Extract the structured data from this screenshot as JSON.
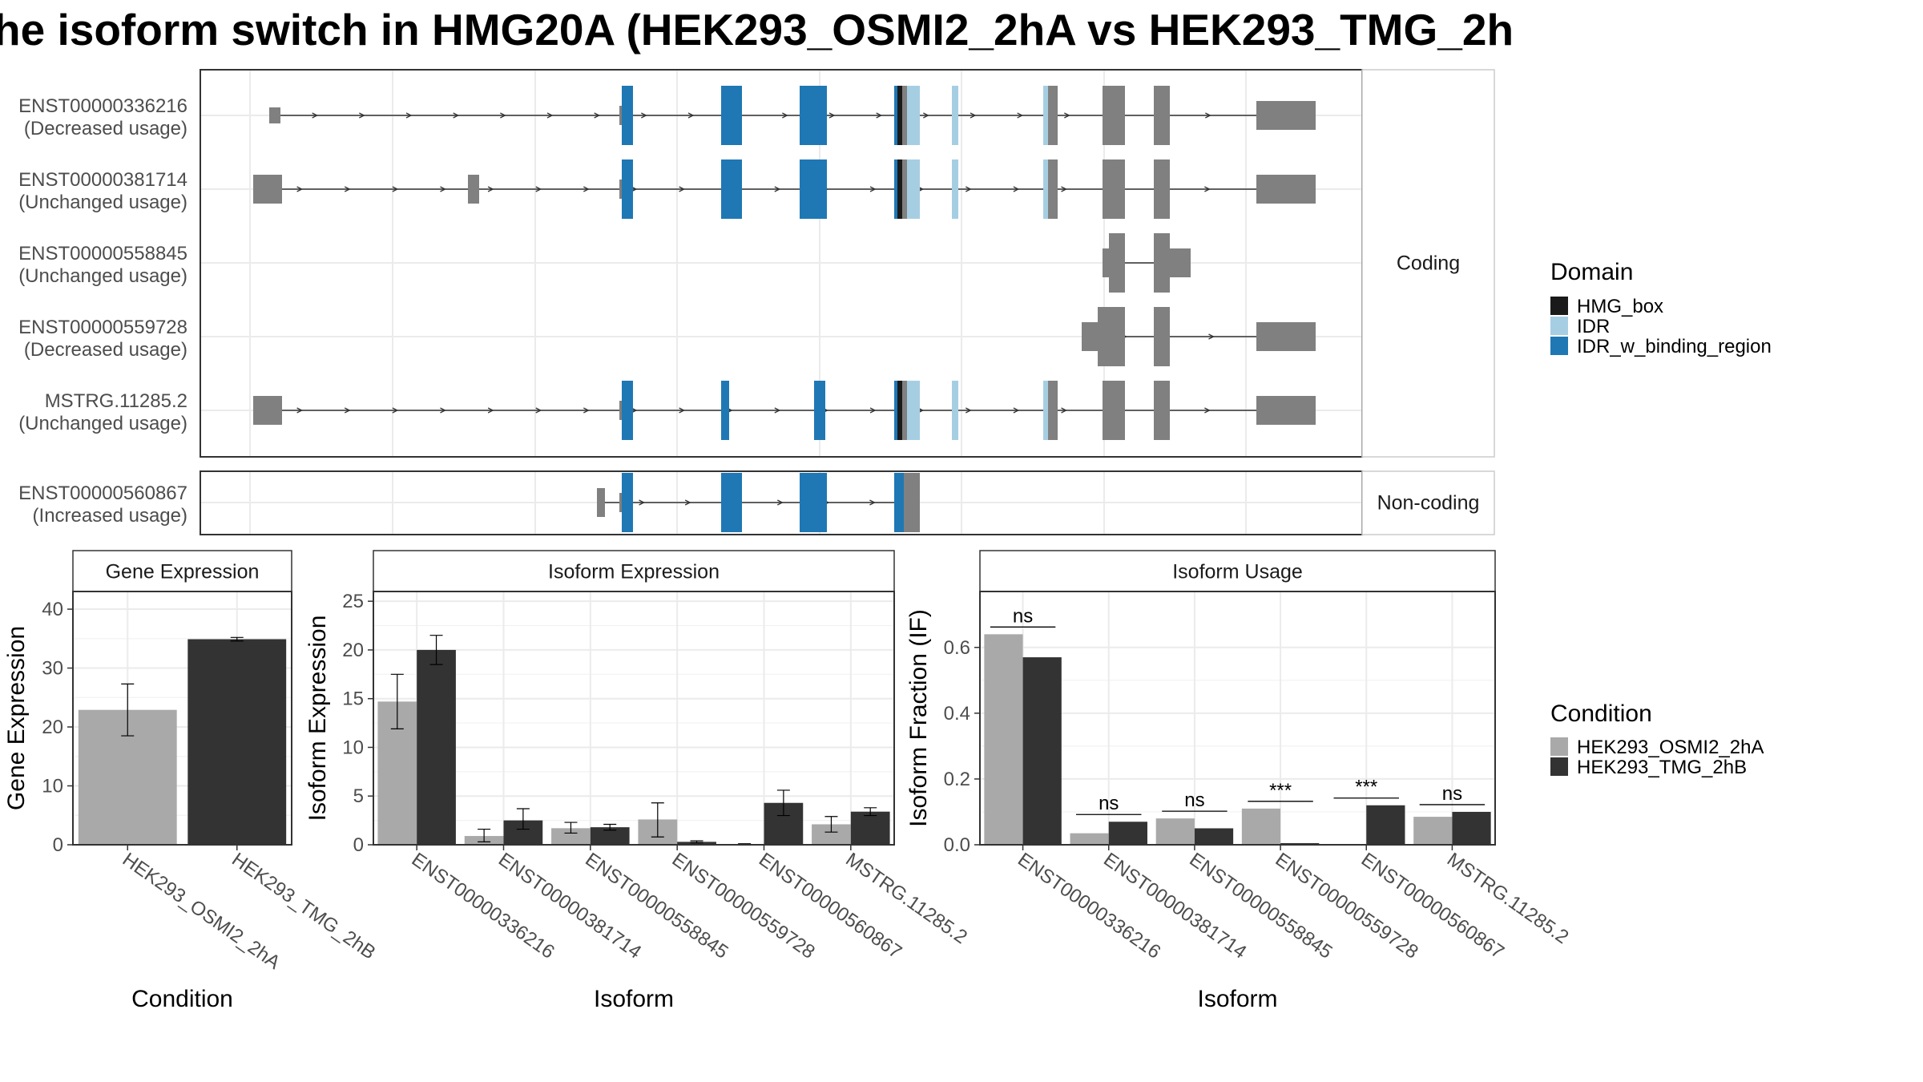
{
  "title": "he isoform switch in HMG20A (HEK293_OSMI2_2hA vs HEK293_TMG_2h",
  "colors": {
    "HMG_box": "#1a1a1a",
    "IDR": "#a6cee3",
    "IDR_w_binding_region": "#1f78b4",
    "exon": "#808080",
    "cond_a": "#a9a9a9",
    "cond_b": "#333333"
  },
  "structure": {
    "facets": [
      "Coding",
      "Non-coding"
    ],
    "transcripts": [
      {
        "id": "ENST00000336216",
        "usage": "(Decreased usage)",
        "facet": "Coding"
      },
      {
        "id": "ENST00000381714",
        "usage": "(Unchanged usage)",
        "facet": "Coding"
      },
      {
        "id": "ENST00000558845",
        "usage": "(Unchanged usage)",
        "facet": "Coding"
      },
      {
        "id": "ENST00000559728",
        "usage": "(Decreased usage)",
        "facet": "Coding"
      },
      {
        "id": "MSTRG.11285.2",
        "usage": "(Unchanged usage)",
        "facet": "Coding"
      },
      {
        "id": "ENST00000560867",
        "usage": "(Increased usage)",
        "facet": "Non-coding"
      }
    ]
  },
  "legend_domain": {
    "title": "Domain",
    "items": [
      "HMG_box",
      "IDR",
      "IDR_w_binding_region"
    ]
  },
  "legend_condition": {
    "title": "Condition",
    "items": [
      "HEK293_OSMI2_2hA",
      "HEK293_TMG_2hB"
    ]
  },
  "chart_data": [
    {
      "type": "bar",
      "title": "Gene Expression",
      "xlabel": "Condition",
      "ylabel": "Gene Expression",
      "categories": [
        "HEK293_OSMI2_2hA",
        "HEK293_TMG_2hB"
      ],
      "values": [
        22.9,
        34.9
      ],
      "errors": [
        [
          18.5,
          27.3
        ],
        [
          34.6,
          35.2
        ]
      ],
      "ylim": [
        0,
        43
      ],
      "yticks": [
        0,
        10,
        20,
        30,
        40
      ]
    },
    {
      "type": "bar",
      "title": "Isoform Expression",
      "xlabel": "Isoform",
      "ylabel": "Isoform Expression",
      "categories": [
        "ENST00000336216",
        "ENST00000381714",
        "ENST00000558845",
        "ENST00000559728",
        "ENST00000560867",
        "MSTRG.11285.2"
      ],
      "series": [
        {
          "name": "HEK293_OSMI2_2hA",
          "values": [
            14.7,
            0.9,
            1.7,
            2.6,
            0.05,
            2.1
          ],
          "errors": [
            [
              11.9,
              17.5
            ],
            [
              0.3,
              1.6
            ],
            [
              1.2,
              2.3
            ],
            [
              0.8,
              4.3
            ],
            [
              0.0,
              0.1
            ],
            [
              1.3,
              2.9
            ]
          ]
        },
        {
          "name": "HEK293_TMG_2hB",
          "values": [
            20.0,
            2.5,
            1.8,
            0.3,
            4.3,
            3.4
          ],
          "errors": [
            [
              18.5,
              21.5
            ],
            [
              1.6,
              3.7
            ],
            [
              1.5,
              2.1
            ],
            [
              0.2,
              0.4
            ],
            [
              3.0,
              5.6
            ],
            [
              3.0,
              3.8
            ]
          ]
        }
      ],
      "ylim": [
        0,
        26
      ],
      "yticks": [
        0,
        5,
        10,
        15,
        20,
        25
      ]
    },
    {
      "type": "bar",
      "title": "Isoform Usage",
      "xlabel": "Isoform",
      "ylabel": "Isoform Fraction (IF)",
      "categories": [
        "ENST00000336216",
        "ENST00000381714",
        "ENST00000558845",
        "ENST00000559728",
        "ENST00000560867",
        "MSTRG.11285.2"
      ],
      "series": [
        {
          "name": "HEK293_OSMI2_2hA",
          "values": [
            0.64,
            0.035,
            0.08,
            0.11,
            0.0,
            0.085
          ]
        },
        {
          "name": "HEK293_TMG_2hB",
          "values": [
            0.57,
            0.07,
            0.05,
            0.005,
            0.12,
            0.1
          ]
        }
      ],
      "significance": [
        "ns",
        "ns",
        "ns",
        "***",
        "***",
        "ns"
      ],
      "ylim": [
        0,
        0.77
      ],
      "yticks": [
        0.0,
        0.2,
        0.4,
        0.6
      ],
      "ytick_labels": [
        "0.0",
        "0.2",
        "0.4",
        "0.6"
      ]
    }
  ]
}
